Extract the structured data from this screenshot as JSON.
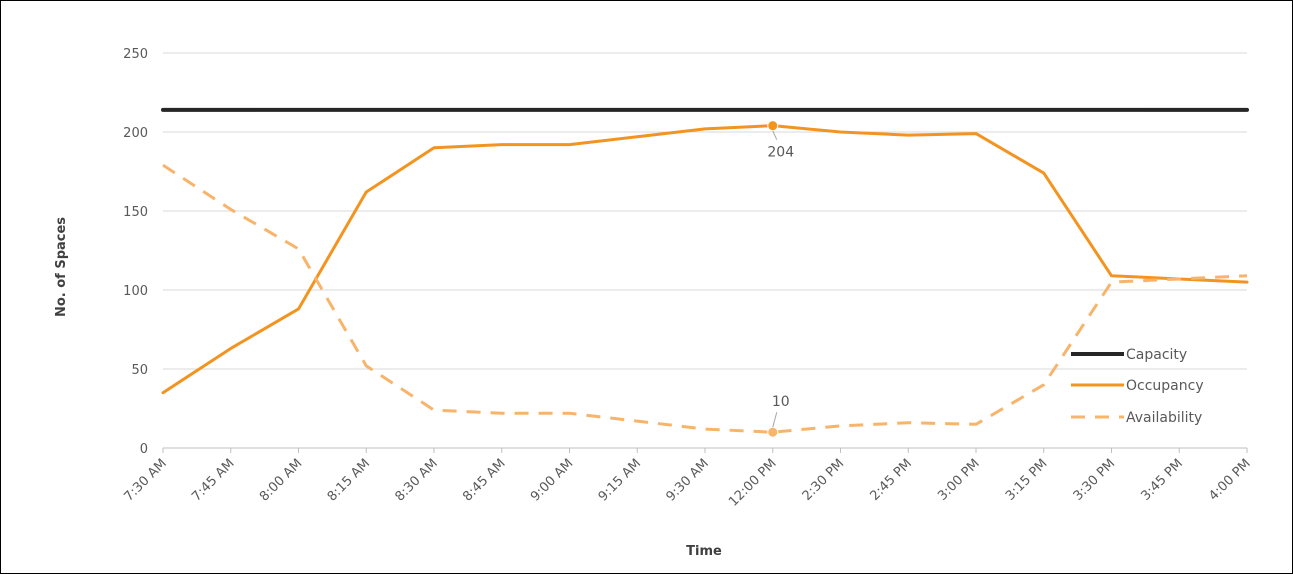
{
  "chart_data": {
    "type": "line",
    "title": "",
    "xlabel": "Time",
    "ylabel": "No. of Spaces",
    "ylim": [
      0,
      250
    ],
    "yticks": [
      0,
      50,
      100,
      150,
      200,
      250
    ],
    "grid": "horizontal",
    "legend_position": "right",
    "categories": [
      "7:30 AM",
      "7:45 AM",
      "8:00 AM",
      "8:15 AM",
      "8:30 AM",
      "8:45 AM",
      "9:00 AM",
      "9:15 AM",
      "9:30 AM",
      "12:00 PM",
      "2:30 PM",
      "2:45 PM",
      "3:00 PM",
      "3:15 PM",
      "3:30 PM",
      "3:45 PM",
      "4:00 PM"
    ],
    "series": [
      {
        "name": "Capacity",
        "color": "#262626",
        "style": "solid",
        "values": [
          214,
          214,
          214,
          214,
          214,
          214,
          214,
          214,
          214,
          214,
          214,
          214,
          214,
          214,
          214,
          214,
          214
        ]
      },
      {
        "name": "Occupancy",
        "color": "#F39420",
        "style": "solid",
        "values": [
          35,
          63,
          88,
          162,
          190,
          192,
          192,
          197,
          202,
          204,
          200,
          198,
          199,
          174,
          109,
          107,
          105
        ]
      },
      {
        "name": "Availability",
        "color": "#F7B46A",
        "style": "dashed",
        "values": [
          179,
          151,
          126,
          52,
          24,
          22,
          22,
          17,
          12,
          10,
          14,
          16,
          15,
          40,
          105,
          107,
          109
        ]
      }
    ],
    "annotations": [
      {
        "text": "204",
        "series": "Occupancy",
        "category": "12:00 PM",
        "value": 204
      },
      {
        "text": "10",
        "series": "Availability",
        "category": "12:00 PM",
        "value": 10
      }
    ]
  }
}
